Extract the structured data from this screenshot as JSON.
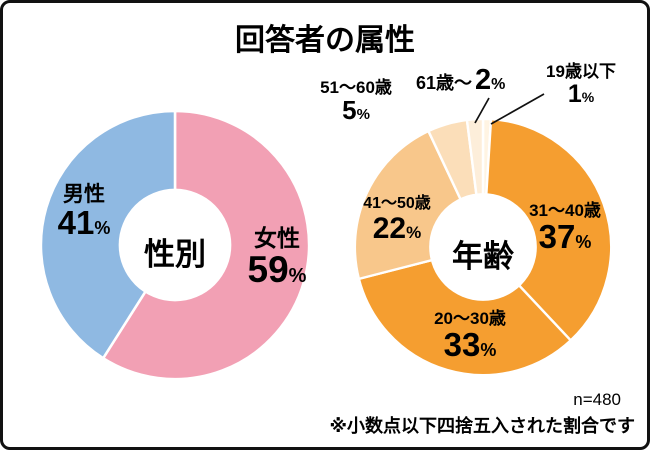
{
  "page": {
    "title": "回答者の属性",
    "sample_size": "n=480",
    "footnote": "※小数点以下四捨五入された割合です"
  },
  "symbols": {
    "percent": "%"
  },
  "chart_data": [
    {
      "type": "pie",
      "variant": "donut",
      "title": "性別",
      "center_label": "性別",
      "start_angle": "top",
      "direction": "clockwise",
      "inner_radius_ratio": 0.42,
      "slices": [
        {
          "label": "女性",
          "value": 59,
          "color": "#f2a0b4"
        },
        {
          "label": "男性",
          "value": 41,
          "color": "#8fb9e2"
        }
      ]
    },
    {
      "type": "pie",
      "variant": "donut",
      "title": "年齢",
      "center_label": "年齢",
      "start_angle": "top",
      "direction": "clockwise",
      "inner_radius_ratio": 0.42,
      "slices": [
        {
          "label": "19歳以下",
          "value": 1,
          "color": "#fff4e3"
        },
        {
          "label": "31〜40歳",
          "value": 37,
          "color": "#f59e30"
        },
        {
          "label": "20〜30歳",
          "value": 33,
          "color": "#f59e30"
        },
        {
          "label": "41〜50歳",
          "value": 22,
          "color": "#f8c78b"
        },
        {
          "label": "51〜60歳",
          "value": 5,
          "color": "#fbdeb9"
        },
        {
          "label": "61歳〜",
          "value": 2,
          "color": "#fdeeda"
        }
      ]
    }
  ]
}
